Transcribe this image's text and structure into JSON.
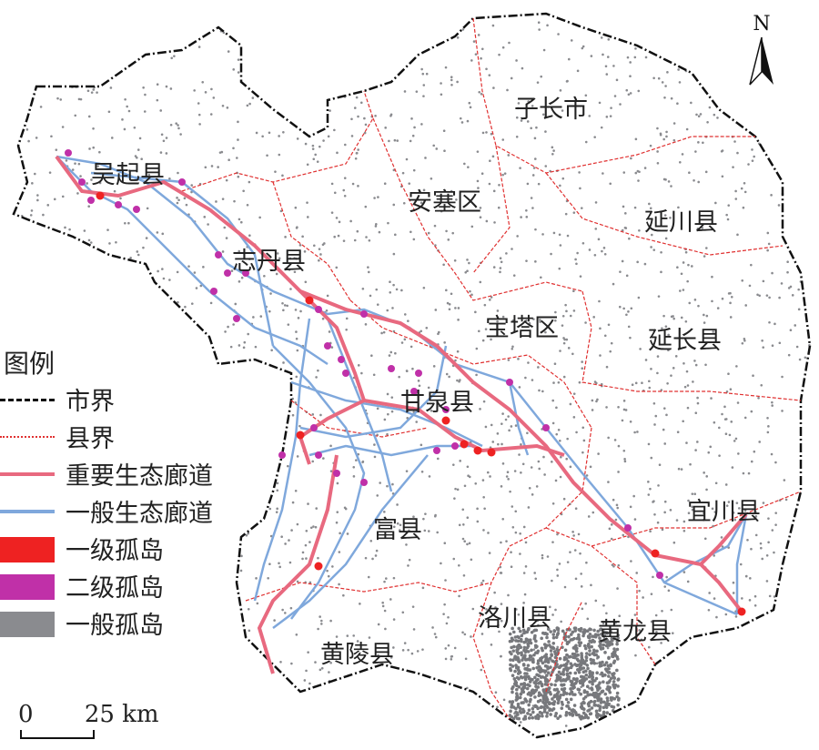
{
  "north_arrow": {
    "label": "N"
  },
  "counties": [
    {
      "name": "子长市"
    },
    {
      "name": "吴起县"
    },
    {
      "name": "安塞区"
    },
    {
      "name": "延川县"
    },
    {
      "name": "志丹县"
    },
    {
      "name": "宝塔区"
    },
    {
      "name": "延长县"
    },
    {
      "name": "甘泉县"
    },
    {
      "name": "宜川县"
    },
    {
      "name": "富县"
    },
    {
      "name": "洛川县"
    },
    {
      "name": "黄龙县"
    },
    {
      "name": "黄陵县"
    }
  ],
  "legend": {
    "title": "图例",
    "items": [
      {
        "label": "市界",
        "symbol": "dash-dot-line",
        "color": "#111111"
      },
      {
        "label": "县界",
        "symbol": "dotted-line",
        "color": "#e03030"
      },
      {
        "label": "重要生态廊道",
        "symbol": "line",
        "color": "#e8697f"
      },
      {
        "label": "一般生态廊道",
        "symbol": "line",
        "color": "#7fa8dc"
      },
      {
        "label": "一级孤岛",
        "symbol": "patch",
        "color": "#ee2222"
      },
      {
        "label": "二级孤岛",
        "symbol": "patch",
        "color": "#c030a8"
      },
      {
        "label": "一般孤岛",
        "symbol": "patch",
        "color": "#8a8b8f"
      }
    ]
  },
  "scale_bar": {
    "start": "0",
    "end": "25 km"
  }
}
